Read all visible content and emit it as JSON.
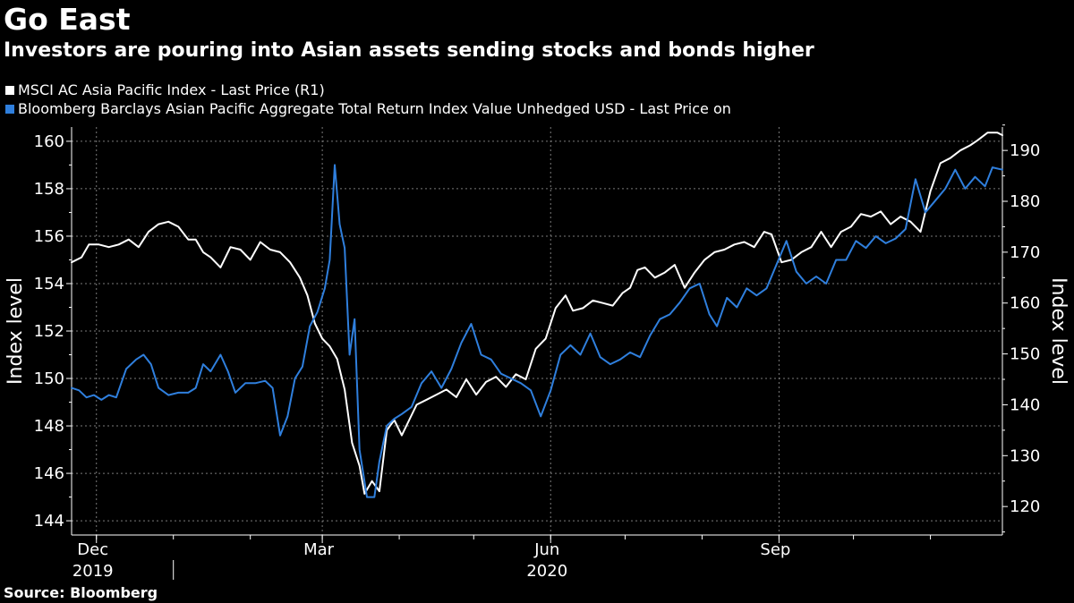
{
  "title": "Go East",
  "subtitle": "Investors are pouring into Asian assets sending stocks and bonds higher",
  "source": "Source: Bloomberg",
  "colors": {
    "msci": "#ffffff",
    "bbg": "#2f7fdd",
    "grid": "#7a7a7a",
    "background": "#000000"
  },
  "legend": [
    {
      "label": "MSCI AC Asia Pacific Index - Last Price (R1)",
      "color": "#ffffff"
    },
    {
      "label": "Bloomberg Barclays Asian Pacific Aggregate Total Return Index Value Unhedged USD - Last Price on",
      "color": "#2f7fdd"
    }
  ],
  "chart_data": {
    "type": "line",
    "title": "Go East",
    "subtitle": "Investors are pouring into Asian assets sending stocks and bonds higher",
    "x_range": [
      "2019-11-21",
      "2020-11-30"
    ],
    "x_ticks": [
      {
        "label": "Dec",
        "date": "2019-12-01"
      },
      {
        "label": "Mar",
        "date": "2020-03-01"
      },
      {
        "label": "Jun",
        "date": "2020-06-01"
      },
      {
        "label": "Sep",
        "date": "2020-09-01"
      }
    ],
    "year_labels": [
      {
        "label": "2019",
        "date": "2019-12-01"
      },
      {
        "label": "2020",
        "date": "2020-06-01"
      }
    ],
    "left_axis": {
      "label": "Index level",
      "ylim": [
        143.4,
        160.6
      ],
      "ticks": [
        144,
        146,
        148,
        150,
        152,
        154,
        156,
        158,
        160
      ]
    },
    "right_axis": {
      "label": "Index level",
      "ylim": [
        114.4,
        194.6
      ],
      "ticks": [
        120,
        130,
        140,
        150,
        160,
        170,
        180,
        190
      ]
    },
    "grid": true,
    "legend_position": "top-left",
    "series": [
      {
        "name": "MSCI AC Asia Pacific Index - Last Price (R1)",
        "axis": "right",
        "color": "#ffffff",
        "points": [
          [
            "2019-11-21",
            168.0
          ],
          [
            "2019-11-25",
            169.0
          ],
          [
            "2019-11-28",
            171.5
          ],
          [
            "2019-12-02",
            171.5
          ],
          [
            "2019-12-06",
            171.0
          ],
          [
            "2019-12-10",
            171.5
          ],
          [
            "2019-12-14",
            172.5
          ],
          [
            "2019-12-18",
            171.0
          ],
          [
            "2019-12-22",
            174.0
          ],
          [
            "2019-12-26",
            175.5
          ],
          [
            "2019-12-30",
            176.0
          ],
          [
            "2020-01-03",
            175.0
          ],
          [
            "2020-01-07",
            172.5
          ],
          [
            "2020-01-10",
            172.5
          ],
          [
            "2020-01-13",
            170.0
          ],
          [
            "2020-01-16",
            169.0
          ],
          [
            "2020-01-20",
            167.0
          ],
          [
            "2020-01-24",
            171.0
          ],
          [
            "2020-01-28",
            170.5
          ],
          [
            "2020-02-01",
            168.5
          ],
          [
            "2020-02-05",
            172.0
          ],
          [
            "2020-02-09",
            170.5
          ],
          [
            "2020-02-13",
            170.0
          ],
          [
            "2020-02-17",
            168.0
          ],
          [
            "2020-02-21",
            165.0
          ],
          [
            "2020-02-24",
            161.5
          ],
          [
            "2020-02-27",
            156.0
          ],
          [
            "2020-03-01",
            153.0
          ],
          [
            "2020-03-04",
            151.5
          ],
          [
            "2020-03-07",
            149.0
          ],
          [
            "2020-03-10",
            143.0
          ],
          [
            "2020-03-13",
            132.5
          ],
          [
            "2020-03-16",
            128.0
          ],
          [
            "2020-03-18",
            122.5
          ],
          [
            "2020-03-21",
            125.0
          ],
          [
            "2020-03-24",
            123.0
          ],
          [
            "2020-03-27",
            135.0
          ],
          [
            "2020-03-30",
            137.0
          ],
          [
            "2020-04-02",
            134.0
          ],
          [
            "2020-04-05",
            137.0
          ],
          [
            "2020-04-08",
            140.0
          ],
          [
            "2020-04-12",
            141.0
          ],
          [
            "2020-04-16",
            142.0
          ],
          [
            "2020-04-20",
            143.0
          ],
          [
            "2020-04-24",
            141.5
          ],
          [
            "2020-04-28",
            145.0
          ],
          [
            "2020-05-02",
            142.0
          ],
          [
            "2020-05-06",
            144.5
          ],
          [
            "2020-05-10",
            145.5
          ],
          [
            "2020-05-14",
            143.5
          ],
          [
            "2020-05-18",
            146.0
          ],
          [
            "2020-05-22",
            145.0
          ],
          [
            "2020-05-26",
            151.0
          ],
          [
            "2020-05-30",
            153.0
          ],
          [
            "2020-06-03",
            159.0
          ],
          [
            "2020-06-07",
            161.5
          ],
          [
            "2020-06-10",
            158.5
          ],
          [
            "2020-06-14",
            159.0
          ],
          [
            "2020-06-18",
            160.5
          ],
          [
            "2020-06-22",
            160.0
          ],
          [
            "2020-06-26",
            159.5
          ],
          [
            "2020-06-30",
            162.0
          ],
          [
            "2020-07-03",
            163.0
          ],
          [
            "2020-07-06",
            166.5
          ],
          [
            "2020-07-09",
            167.0
          ],
          [
            "2020-07-13",
            165.0
          ],
          [
            "2020-07-17",
            166.0
          ],
          [
            "2020-07-21",
            167.5
          ],
          [
            "2020-07-25",
            163.0
          ],
          [
            "2020-07-29",
            166.0
          ],
          [
            "2020-08-02",
            168.5
          ],
          [
            "2020-08-06",
            170.0
          ],
          [
            "2020-08-10",
            170.5
          ],
          [
            "2020-08-14",
            171.5
          ],
          [
            "2020-08-18",
            172.0
          ],
          [
            "2020-08-22",
            171.0
          ],
          [
            "2020-08-26",
            174.0
          ],
          [
            "2020-08-29",
            173.5
          ],
          [
            "2020-09-02",
            168.0
          ],
          [
            "2020-09-06",
            168.5
          ],
          [
            "2020-09-10",
            170.0
          ],
          [
            "2020-09-14",
            171.0
          ],
          [
            "2020-09-18",
            174.0
          ],
          [
            "2020-09-22",
            171.0
          ],
          [
            "2020-09-26",
            174.0
          ],
          [
            "2020-09-30",
            175.0
          ],
          [
            "2020-10-04",
            177.5
          ],
          [
            "2020-10-08",
            177.0
          ],
          [
            "2020-10-12",
            178.0
          ],
          [
            "2020-10-16",
            175.5
          ],
          [
            "2020-10-20",
            177.0
          ],
          [
            "2020-10-24",
            176.0
          ],
          [
            "2020-10-28",
            174.0
          ],
          [
            "2020-11-01",
            182.0
          ],
          [
            "2020-11-05",
            187.5
          ],
          [
            "2020-11-09",
            188.5
          ],
          [
            "2020-11-13",
            190.0
          ],
          [
            "2020-11-17",
            191.0
          ],
          [
            "2020-11-20",
            192.0
          ],
          [
            "2020-11-24",
            193.5
          ],
          [
            "2020-11-28",
            193.5
          ],
          [
            "2020-11-30",
            193.0
          ]
        ]
      },
      {
        "name": "Bloomberg Barclays Asian Pacific Aggregate Total Return Index Value Unhedged USD - Last Price on",
        "axis": "left",
        "color": "#2f7fdd",
        "points": [
          [
            "2019-11-21",
            149.6
          ],
          [
            "2019-11-24",
            149.5
          ],
          [
            "2019-11-27",
            149.2
          ],
          [
            "2019-11-30",
            149.3
          ],
          [
            "2019-12-03",
            149.1
          ],
          [
            "2019-12-06",
            149.3
          ],
          [
            "2019-12-09",
            149.2
          ],
          [
            "2019-12-13",
            150.4
          ],
          [
            "2019-12-17",
            150.8
          ],
          [
            "2019-12-20",
            151.0
          ],
          [
            "2019-12-23",
            150.6
          ],
          [
            "2019-12-26",
            149.6
          ],
          [
            "2019-12-30",
            149.3
          ],
          [
            "2020-01-03",
            149.4
          ],
          [
            "2020-01-07",
            149.4
          ],
          [
            "2020-01-10",
            149.6
          ],
          [
            "2020-01-13",
            150.6
          ],
          [
            "2020-01-16",
            150.3
          ],
          [
            "2020-01-20",
            151.0
          ],
          [
            "2020-01-23",
            150.3
          ],
          [
            "2020-01-26",
            149.4
          ],
          [
            "2020-01-30",
            149.8
          ],
          [
            "2020-02-03",
            149.8
          ],
          [
            "2020-02-07",
            149.9
          ],
          [
            "2020-02-10",
            149.6
          ],
          [
            "2020-02-13",
            147.6
          ],
          [
            "2020-02-16",
            148.4
          ],
          [
            "2020-02-19",
            150.0
          ],
          [
            "2020-02-22",
            150.5
          ],
          [
            "2020-02-25",
            152.2
          ],
          [
            "2020-02-28",
            152.8
          ],
          [
            "2020-03-02",
            153.8
          ],
          [
            "2020-03-04",
            155.0
          ],
          [
            "2020-03-06",
            159.0
          ],
          [
            "2020-03-08",
            156.5
          ],
          [
            "2020-03-10",
            155.5
          ],
          [
            "2020-03-12",
            151.0
          ],
          [
            "2020-03-14",
            152.5
          ],
          [
            "2020-03-16",
            147.0
          ],
          [
            "2020-03-19",
            145.0
          ],
          [
            "2020-03-22",
            145.0
          ],
          [
            "2020-03-24",
            146.5
          ],
          [
            "2020-03-27",
            148.0
          ],
          [
            "2020-03-30",
            148.3
          ],
          [
            "2020-04-02",
            148.5
          ],
          [
            "2020-04-06",
            148.8
          ],
          [
            "2020-04-10",
            149.8
          ],
          [
            "2020-04-14",
            150.3
          ],
          [
            "2020-04-18",
            149.6
          ],
          [
            "2020-04-22",
            150.4
          ],
          [
            "2020-04-26",
            151.5
          ],
          [
            "2020-04-30",
            152.3
          ],
          [
            "2020-05-04",
            151.0
          ],
          [
            "2020-05-08",
            150.8
          ],
          [
            "2020-05-12",
            150.2
          ],
          [
            "2020-05-16",
            150.0
          ],
          [
            "2020-05-20",
            149.8
          ],
          [
            "2020-05-24",
            149.5
          ],
          [
            "2020-05-28",
            148.4
          ],
          [
            "2020-06-01",
            149.5
          ],
          [
            "2020-06-05",
            151.0
          ],
          [
            "2020-06-09",
            151.4
          ],
          [
            "2020-06-13",
            151.0
          ],
          [
            "2020-06-17",
            151.9
          ],
          [
            "2020-06-21",
            150.9
          ],
          [
            "2020-06-25",
            150.6
          ],
          [
            "2020-06-29",
            150.8
          ],
          [
            "2020-07-03",
            151.1
          ],
          [
            "2020-07-07",
            150.9
          ],
          [
            "2020-07-11",
            151.8
          ],
          [
            "2020-07-15",
            152.5
          ],
          [
            "2020-07-19",
            152.7
          ],
          [
            "2020-07-23",
            153.2
          ],
          [
            "2020-07-27",
            153.8
          ],
          [
            "2020-07-31",
            154.0
          ],
          [
            "2020-08-04",
            152.7
          ],
          [
            "2020-08-07",
            152.2
          ],
          [
            "2020-08-11",
            153.4
          ],
          [
            "2020-08-15",
            153.0
          ],
          [
            "2020-08-19",
            153.8
          ],
          [
            "2020-08-23",
            153.5
          ],
          [
            "2020-08-27",
            153.8
          ],
          [
            "2020-08-31",
            154.8
          ],
          [
            "2020-09-04",
            155.8
          ],
          [
            "2020-09-08",
            154.5
          ],
          [
            "2020-09-12",
            154.0
          ],
          [
            "2020-09-16",
            154.3
          ],
          [
            "2020-09-20",
            154.0
          ],
          [
            "2020-09-24",
            155.0
          ],
          [
            "2020-09-28",
            155.0
          ],
          [
            "2020-10-02",
            155.8
          ],
          [
            "2020-10-06",
            155.5
          ],
          [
            "2020-10-10",
            156.0
          ],
          [
            "2020-10-14",
            155.7
          ],
          [
            "2020-10-18",
            155.9
          ],
          [
            "2020-10-22",
            156.3
          ],
          [
            "2020-10-26",
            158.4
          ],
          [
            "2020-10-30",
            157.0
          ],
          [
            "2020-11-03",
            157.5
          ],
          [
            "2020-11-07",
            158.0
          ],
          [
            "2020-11-11",
            158.8
          ],
          [
            "2020-11-15",
            158.0
          ],
          [
            "2020-11-19",
            158.5
          ],
          [
            "2020-11-23",
            158.1
          ],
          [
            "2020-11-26",
            158.9
          ],
          [
            "2020-11-30",
            158.8
          ]
        ]
      }
    ]
  }
}
